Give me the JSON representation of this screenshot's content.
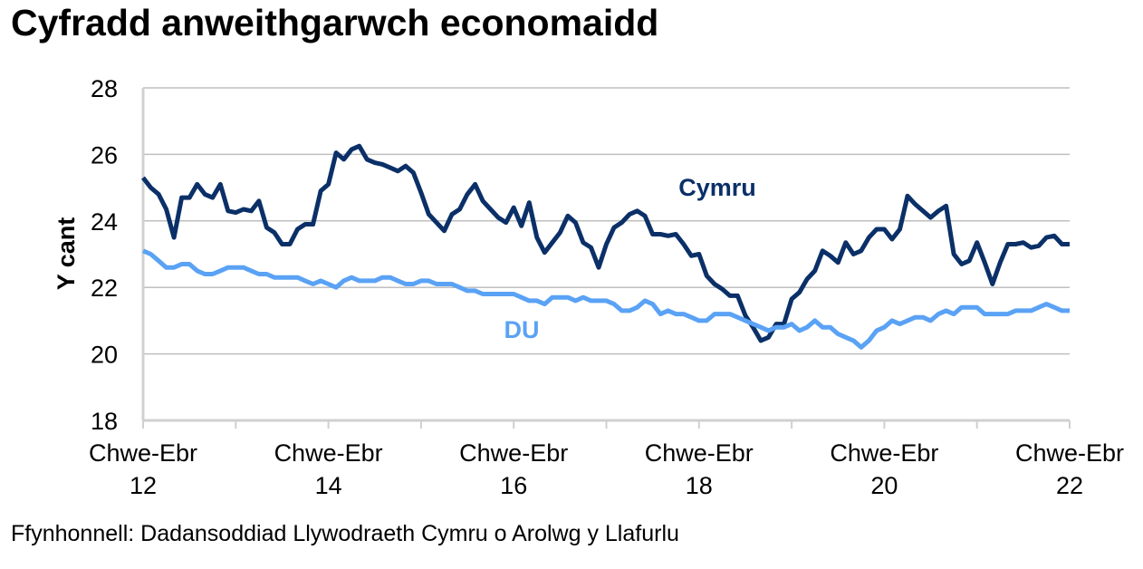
{
  "chart_data": {
    "type": "line",
    "title": "Cyfradd anweithgarwch economaidd",
    "ylabel": "Y cant",
    "xlabel": "",
    "ylim": [
      18,
      28
    ],
    "yticks": [
      "18",
      "20",
      "22",
      "24",
      "26",
      "28"
    ],
    "grid": true,
    "x_start_year": 2012,
    "x_end_year": 2022,
    "xticks": [
      {
        "line1": "Chwe-Ebr",
        "line2": "12",
        "year": 2012
      },
      {
        "line1": "Chwe-Ebr",
        "line2": "14",
        "year": 2014
      },
      {
        "line1": "Chwe-Ebr",
        "line2": "16",
        "year": 2016
      },
      {
        "line1": "Chwe-Ebr",
        "line2": "18",
        "year": 2018
      },
      {
        "line1": "Chwe-Ebr",
        "line2": "20",
        "year": 2020
      },
      {
        "line1": "Chwe-Ebr",
        "line2": "22",
        "year": 2022
      }
    ],
    "series": [
      {
        "name": "Cymru",
        "color": "#0b3068",
        "values": [
          25.3,
          25.0,
          24.8,
          24.35,
          23.5,
          24.7,
          24.7,
          25.1,
          24.8,
          24.7,
          25.1,
          24.3,
          24.25,
          24.35,
          24.3,
          24.6,
          23.8,
          23.65,
          23.3,
          23.3,
          23.75,
          23.9,
          23.9,
          24.9,
          25.1,
          26.05,
          25.85,
          26.15,
          26.25,
          25.85,
          25.75,
          25.7,
          25.6,
          25.5,
          25.65,
          25.45,
          24.85,
          24.2,
          23.95,
          23.7,
          24.2,
          24.35,
          24.8,
          25.1,
          24.6,
          24.35,
          24.1,
          23.95,
          24.4,
          23.85,
          24.55,
          23.5,
          23.05,
          23.35,
          23.65,
          24.15,
          23.95,
          23.35,
          23.2,
          22.6,
          23.3,
          23.8,
          23.95,
          24.2,
          24.3,
          24.15,
          23.6,
          23.6,
          23.55,
          23.6,
          23.3,
          22.95,
          23.0,
          22.35,
          22.1,
          21.95,
          21.75,
          21.75,
          21.15,
          20.8,
          20.4,
          20.5,
          20.9,
          20.9,
          21.65,
          21.85,
          22.25,
          22.5,
          23.1,
          22.95,
          22.75,
          23.35,
          23.0,
          23.1,
          23.5,
          23.75,
          23.75,
          23.45,
          23.75,
          24.75,
          24.5,
          24.3,
          24.1,
          24.3,
          24.45,
          23.0,
          22.7,
          22.8,
          23.35,
          22.75,
          22.1,
          22.75,
          23.3,
          23.3,
          23.35,
          23.2,
          23.25,
          23.5,
          23.55,
          23.3,
          23.3
        ]
      },
      {
        "name": "DU",
        "color": "#5aa2f5",
        "values": [
          23.1,
          23.0,
          22.8,
          22.6,
          22.6,
          22.7,
          22.7,
          22.5,
          22.4,
          22.4,
          22.5,
          22.6,
          22.6,
          22.6,
          22.5,
          22.4,
          22.4,
          22.3,
          22.3,
          22.3,
          22.3,
          22.2,
          22.1,
          22.2,
          22.1,
          22.0,
          22.2,
          22.3,
          22.2,
          22.2,
          22.2,
          22.3,
          22.3,
          22.2,
          22.1,
          22.1,
          22.2,
          22.2,
          22.1,
          22.1,
          22.1,
          22.0,
          21.9,
          21.9,
          21.8,
          21.8,
          21.8,
          21.8,
          21.8,
          21.7,
          21.6,
          21.6,
          21.5,
          21.7,
          21.7,
          21.7,
          21.6,
          21.7,
          21.6,
          21.6,
          21.6,
          21.5,
          21.3,
          21.3,
          21.4,
          21.6,
          21.5,
          21.2,
          21.3,
          21.2,
          21.2,
          21.1,
          21.0,
          21.0,
          21.2,
          21.2,
          21.2,
          21.1,
          21.0,
          20.9,
          20.8,
          20.7,
          20.8,
          20.8,
          20.9,
          20.7,
          20.8,
          21.0,
          20.8,
          20.8,
          20.6,
          20.5,
          20.4,
          20.2,
          20.4,
          20.7,
          20.8,
          21.0,
          20.9,
          21.0,
          21.1,
          21.1,
          21.0,
          21.2,
          21.3,
          21.2,
          21.4,
          21.4,
          21.4,
          21.2,
          21.2,
          21.2,
          21.2,
          21.3,
          21.3,
          21.3,
          21.4,
          21.5,
          21.4,
          21.3,
          21.3
        ]
      }
    ],
    "annotations": [
      "Cymru",
      "DU"
    ],
    "source": "Ffynhonnell: Dadansoddiad Llywodraeth Cymru o Arolwg y Llafurlu"
  }
}
